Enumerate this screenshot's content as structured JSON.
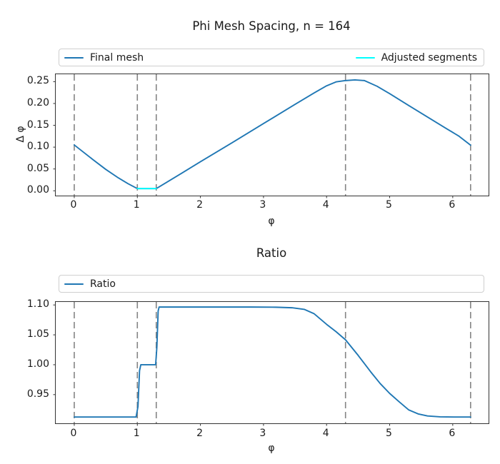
{
  "colors": {
    "series_blue": "#1f77b4",
    "series_cyan": "#00ffff",
    "vline_gray": "#848484",
    "frame": "#333333",
    "text": "#1a1a1a",
    "legend_border": "#cfcfcf",
    "background": "#ffffff"
  },
  "chart_data": [
    {
      "type": "line",
      "title": "Phi Mesh Spacing, n = 164",
      "xlabel": "φ",
      "ylabel": "Δ φ",
      "xlim": [
        -0.294,
        6.568
      ],
      "ylim": [
        -0.011,
        0.267
      ],
      "xticks": [
        0,
        1,
        2,
        3,
        4,
        5,
        6
      ],
      "xtick_labels": [
        "0",
        "1",
        "2",
        "3",
        "4",
        "5",
        "6"
      ],
      "yticks": [
        0.0,
        0.05,
        0.1,
        0.15,
        0.2,
        0.25
      ],
      "ytick_labels": [
        "0.00",
        "0.05",
        "0.10",
        "0.15",
        "0.20",
        "0.25"
      ],
      "grid": false,
      "legend_position": "top-expand",
      "legend": [
        {
          "label": "Final mesh",
          "color": "#1f77b4"
        },
        {
          "label": "Adjusted segments",
          "color": "#00ffff"
        }
      ],
      "vlines": [
        0,
        1.0,
        1.3,
        4.3,
        6.283
      ],
      "series": [
        {
          "name": "Final mesh",
          "color": "#1f77b4",
          "points": [
            [
              0,
              0.105
            ],
            [
              0.3,
              0.071
            ],
            [
              0.5,
              0.049
            ],
            [
              0.7,
              0.0295
            ],
            [
              0.85,
              0.0165
            ],
            [
              1.0,
              0.005
            ],
            [
              1.3,
              0.005
            ],
            [
              1.7,
              0.04
            ],
            [
              2.0,
              0.0665
            ],
            [
              2.5,
              0.11
            ],
            [
              3.0,
              0.154
            ],
            [
              3.5,
              0.198
            ],
            [
              3.8,
              0.224
            ],
            [
              4.0,
              0.2405
            ],
            [
              4.15,
              0.2495
            ],
            [
              4.3,
              0.2525
            ],
            [
              4.45,
              0.254
            ],
            [
              4.6,
              0.2525
            ],
            [
              4.8,
              0.2395
            ],
            [
              5.0,
              0.2225
            ],
            [
              5.3,
              0.1955
            ],
            [
              5.6,
              0.169
            ],
            [
              5.9,
              0.1425
            ],
            [
              6.1,
              0.125
            ],
            [
              6.283,
              0.1045
            ]
          ]
        },
        {
          "name": "Adjusted segments",
          "color": "#00ffff",
          "points": [
            [
              1.0,
              0.005
            ],
            [
              1.3,
              0.005
            ]
          ]
        }
      ]
    },
    {
      "type": "line",
      "title": "Ratio",
      "xlabel": "φ",
      "ylabel": "",
      "xlim": [
        -0.294,
        6.568
      ],
      "ylim": [
        0.902,
        1.105
      ],
      "xticks": [
        0,
        1,
        2,
        3,
        4,
        5,
        6
      ],
      "xtick_labels": [
        "0",
        "1",
        "2",
        "3",
        "4",
        "5",
        "6"
      ],
      "yticks": [
        0.95,
        1.0,
        1.05,
        1.1
      ],
      "ytick_labels": [
        "0.95",
        "1.00",
        "1.05",
        "1.10"
      ],
      "grid": false,
      "legend_position": "top-expand",
      "legend": [
        {
          "label": "Ratio",
          "color": "#1f77b4"
        }
      ],
      "vlines": [
        0,
        1.0,
        1.3,
        4.3,
        6.283
      ],
      "series": [
        {
          "name": "Ratio",
          "color": "#1f77b4",
          "points": [
            [
              0,
              0.9125
            ],
            [
              0.6,
              0.9125
            ],
            [
              0.98,
              0.9125
            ],
            [
              1.01,
              0.93
            ],
            [
              1.035,
              0.99
            ],
            [
              1.055,
              1.0
            ],
            [
              1.29,
              1.0
            ],
            [
              1.31,
              1.03
            ],
            [
              1.33,
              1.09
            ],
            [
              1.345,
              1.0965
            ],
            [
              1.7,
              1.0965
            ],
            [
              2.2,
              1.0965
            ],
            [
              2.8,
              1.0965
            ],
            [
              3.2,
              1.0962
            ],
            [
              3.45,
              1.0953
            ],
            [
              3.65,
              1.0925
            ],
            [
              3.8,
              1.0855
            ],
            [
              4.0,
              1.0676
            ],
            [
              4.15,
              1.0553
            ],
            [
              4.3,
              1.0417
            ],
            [
              4.5,
              1.0157
            ],
            [
              4.7,
              0.988
            ],
            [
              4.85,
              0.9685
            ],
            [
              5.0,
              0.952
            ],
            [
              5.15,
              0.938
            ],
            [
              5.3,
              0.9246
            ],
            [
              5.45,
              0.9178
            ],
            [
              5.6,
              0.9143
            ],
            [
              5.8,
              0.9128
            ],
            [
              6.05,
              0.9125
            ],
            [
              6.283,
              0.9125
            ]
          ]
        }
      ]
    }
  ]
}
